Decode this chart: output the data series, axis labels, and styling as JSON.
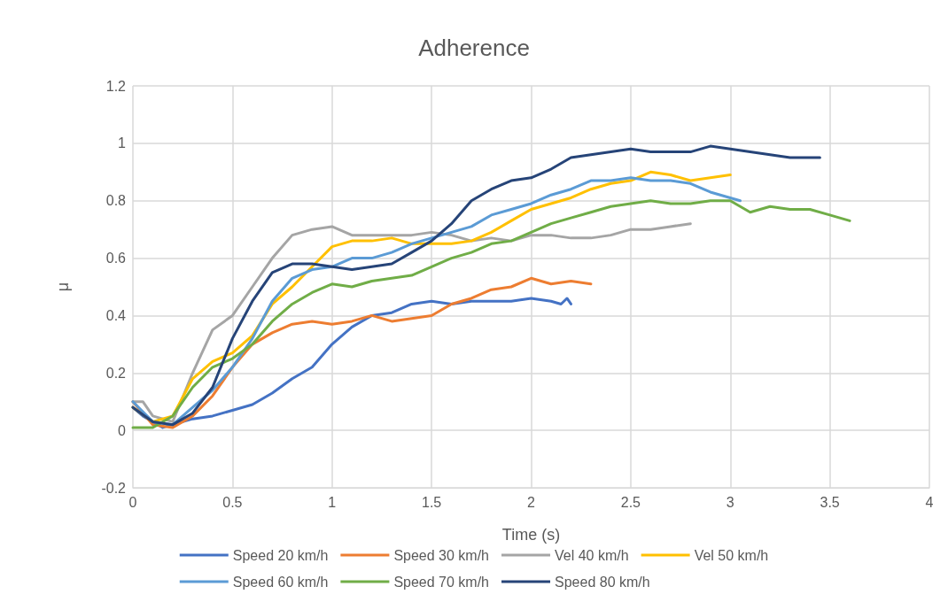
{
  "chart_data": {
    "type": "line",
    "title": "Adherence",
    "xlabel": "Time (s)",
    "ylabel": "μ",
    "xlim": [
      0,
      4
    ],
    "xticks": [
      0,
      0.5,
      1,
      1.5,
      2,
      2.5,
      3,
      3.5,
      4
    ],
    "ylim": [
      -0.2,
      1.2
    ],
    "yticks": [
      -0.2,
      0,
      0.2,
      0.4,
      0.6,
      0.8,
      1,
      1.2
    ],
    "grid": true,
    "legend": "bottom",
    "marker": "none",
    "line_style": "solid",
    "series": [
      {
        "name": "Speed 20 km/h",
        "color": "#4472c4",
        "x": [
          0,
          0.05,
          0.1,
          0.15,
          0.2,
          0.3,
          0.4,
          0.5,
          0.6,
          0.7,
          0.8,
          0.9,
          1.0,
          1.1,
          1.2,
          1.3,
          1.4,
          1.5,
          1.6,
          1.7,
          1.8,
          1.9,
          2.0,
          2.1,
          2.15,
          2.18,
          2.2
        ],
        "values": [
          0.08,
          0.05,
          0.03,
          0.01,
          0.02,
          0.04,
          0.05,
          0.07,
          0.09,
          0.13,
          0.18,
          0.22,
          0.3,
          0.36,
          0.4,
          0.41,
          0.44,
          0.45,
          0.44,
          0.45,
          0.45,
          0.45,
          0.46,
          0.45,
          0.44,
          0.46,
          0.44
        ]
      },
      {
        "name": "Speed 30 km/h",
        "color": "#ed7d31",
        "x": [
          0,
          0.1,
          0.2,
          0.3,
          0.4,
          0.5,
          0.6,
          0.7,
          0.8,
          0.9,
          1.0,
          1.1,
          1.2,
          1.3,
          1.4,
          1.5,
          1.6,
          1.7,
          1.8,
          1.9,
          2.0,
          2.1,
          2.2,
          2.3
        ],
        "values": [
          0.1,
          0.02,
          0.01,
          0.05,
          0.12,
          0.22,
          0.3,
          0.34,
          0.37,
          0.38,
          0.37,
          0.38,
          0.4,
          0.38,
          0.39,
          0.4,
          0.44,
          0.46,
          0.49,
          0.5,
          0.53,
          0.51,
          0.52,
          0.51
        ]
      },
      {
        "name": "Vel 40 km/h",
        "color": "#a5a5a5",
        "x": [
          0,
          0.05,
          0.1,
          0.2,
          0.3,
          0.4,
          0.5,
          0.6,
          0.7,
          0.8,
          0.9,
          1.0,
          1.1,
          1.2,
          1.3,
          1.4,
          1.5,
          1.6,
          1.7,
          1.8,
          1.9,
          2.0,
          2.1,
          2.2,
          2.3,
          2.4,
          2.5,
          2.6,
          2.7,
          2.8
        ],
        "values": [
          0.1,
          0.1,
          0.05,
          0.03,
          0.2,
          0.35,
          0.4,
          0.5,
          0.6,
          0.68,
          0.7,
          0.71,
          0.68,
          0.68,
          0.68,
          0.68,
          0.69,
          0.68,
          0.66,
          0.67,
          0.66,
          0.68,
          0.68,
          0.67,
          0.67,
          0.68,
          0.7,
          0.7,
          0.71,
          0.72
        ]
      },
      {
        "name": "Vel 50 km/h",
        "color": "#ffc000",
        "x": [
          0,
          0.1,
          0.2,
          0.3,
          0.4,
          0.5,
          0.6,
          0.7,
          0.8,
          0.9,
          1.0,
          1.1,
          1.2,
          1.3,
          1.4,
          1.5,
          1.6,
          1.7,
          1.8,
          1.9,
          2.0,
          2.1,
          2.2,
          2.3,
          2.4,
          2.5,
          2.6,
          2.7,
          2.8,
          2.9,
          3.0
        ],
        "values": [
          0.08,
          0.03,
          0.05,
          0.18,
          0.24,
          0.27,
          0.33,
          0.44,
          0.5,
          0.57,
          0.64,
          0.66,
          0.66,
          0.67,
          0.65,
          0.65,
          0.65,
          0.66,
          0.69,
          0.73,
          0.77,
          0.79,
          0.81,
          0.84,
          0.86,
          0.87,
          0.9,
          0.89,
          0.87,
          0.88,
          0.89
        ]
      },
      {
        "name": "Speed 60 km/h",
        "color": "#5b9bd5",
        "x": [
          0,
          0.1,
          0.2,
          0.3,
          0.4,
          0.5,
          0.6,
          0.7,
          0.8,
          0.9,
          1.0,
          1.1,
          1.2,
          1.3,
          1.4,
          1.5,
          1.6,
          1.7,
          1.8,
          1.9,
          2.0,
          2.1,
          2.2,
          2.3,
          2.4,
          2.5,
          2.6,
          2.7,
          2.8,
          2.9,
          3.0,
          3.05
        ],
        "values": [
          0.1,
          0.03,
          0.02,
          0.08,
          0.14,
          0.22,
          0.32,
          0.45,
          0.53,
          0.56,
          0.57,
          0.6,
          0.6,
          0.62,
          0.65,
          0.67,
          0.69,
          0.71,
          0.75,
          0.77,
          0.79,
          0.82,
          0.84,
          0.87,
          0.87,
          0.88,
          0.87,
          0.87,
          0.86,
          0.83,
          0.81,
          0.8
        ]
      },
      {
        "name": "Speed 70 km/h",
        "color": "#70ad47",
        "x": [
          0,
          0.1,
          0.2,
          0.3,
          0.4,
          0.5,
          0.6,
          0.7,
          0.8,
          0.9,
          1.0,
          1.1,
          1.2,
          1.3,
          1.4,
          1.5,
          1.6,
          1.7,
          1.8,
          1.9,
          2.0,
          2.1,
          2.2,
          2.3,
          2.4,
          2.5,
          2.6,
          2.7,
          2.8,
          2.9,
          3.0,
          3.1,
          3.2,
          3.3,
          3.4,
          3.5,
          3.6
        ],
        "values": [
          0.01,
          0.01,
          0.05,
          0.15,
          0.22,
          0.25,
          0.3,
          0.38,
          0.44,
          0.48,
          0.51,
          0.5,
          0.52,
          0.53,
          0.54,
          0.57,
          0.6,
          0.62,
          0.65,
          0.66,
          0.69,
          0.72,
          0.74,
          0.76,
          0.78,
          0.79,
          0.8,
          0.79,
          0.79,
          0.8,
          0.8,
          0.76,
          0.78,
          0.77,
          0.77,
          0.75,
          0.73
        ]
      },
      {
        "name": "Speed 80 km/h",
        "color": "#264478",
        "x": [
          0,
          0.1,
          0.2,
          0.3,
          0.4,
          0.5,
          0.6,
          0.7,
          0.8,
          0.9,
          1.0,
          1.1,
          1.2,
          1.3,
          1.4,
          1.5,
          1.6,
          1.7,
          1.8,
          1.9,
          2.0,
          2.1,
          2.2,
          2.3,
          2.4,
          2.5,
          2.6,
          2.7,
          2.8,
          2.9,
          3.0,
          3.1,
          3.2,
          3.3,
          3.4,
          3.45
        ],
        "values": [
          0.08,
          0.03,
          0.02,
          0.06,
          0.15,
          0.32,
          0.45,
          0.55,
          0.58,
          0.58,
          0.57,
          0.56,
          0.57,
          0.58,
          0.62,
          0.66,
          0.72,
          0.8,
          0.84,
          0.87,
          0.88,
          0.91,
          0.95,
          0.96,
          0.97,
          0.98,
          0.97,
          0.97,
          0.97,
          0.99,
          0.98,
          0.97,
          0.96,
          0.95,
          0.95,
          0.95
        ]
      }
    ]
  }
}
